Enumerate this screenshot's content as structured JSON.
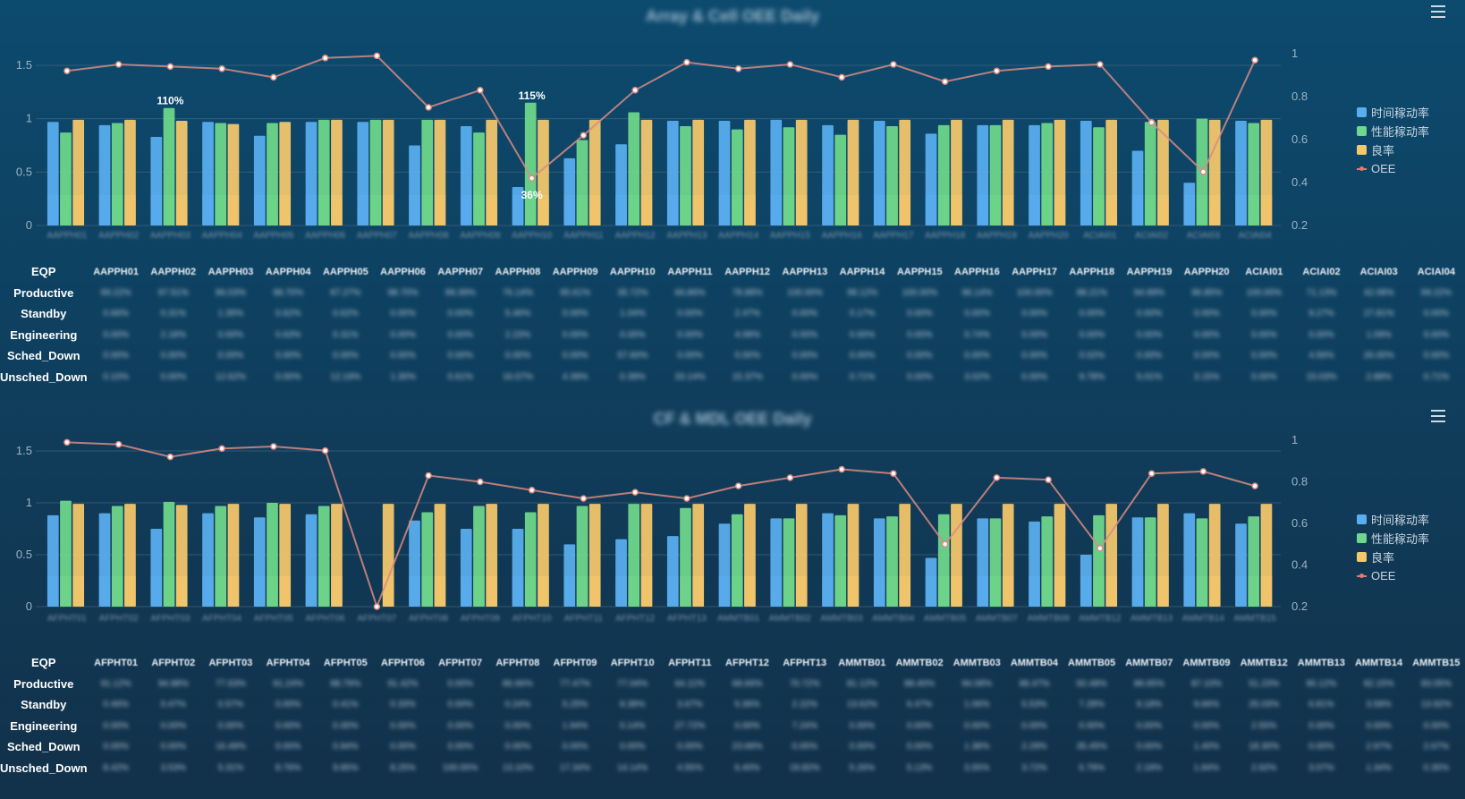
{
  "legend": [
    {
      "label": "时间稼动率",
      "color": "#5aaef0"
    },
    {
      "label": "性能稼动率",
      "color": "#6fd88a"
    },
    {
      "label": "良率",
      "color": "#f6c86c"
    },
    {
      "label": "OEE",
      "color": "#e27b6e"
    }
  ],
  "row_labels": [
    "EQP",
    "Productive",
    "Standby",
    "Engineering",
    "Sched_Down",
    "Unsched_Down"
  ],
  "panels": [
    {
      "title": "Array & Cell OEE Daily",
      "chart_data": {
        "type": "bar",
        "categories": [
          "AAPPH01",
          "AAPPH02",
          "AAPPH03",
          "AAPPH04",
          "AAPPH05",
          "AAPPH06",
          "AAPPH07",
          "AAPPH08",
          "AAPPH09",
          "AAPPH10",
          "AAPPH11",
          "AAPPH12",
          "AAPPH13",
          "AAPPH14",
          "AAPPH15",
          "AAPPH16",
          "AAPPH17",
          "AAPPH18",
          "AAPPH19",
          "AAPPH20",
          "ACIAI01",
          "ACIAI02",
          "ACIAI03",
          "ACIAI04"
        ],
        "ylim_left": [
          0,
          1.5
        ],
        "yticks_left": [
          "0",
          "0.5",
          "1",
          "1.5"
        ],
        "ylim_right": [
          0.2,
          1
        ],
        "yticks_right": [
          "0.2",
          "0.4",
          "0.6",
          "0.8",
          "1"
        ],
        "series": [
          {
            "name": "时间稼动率",
            "values": [
              0.97,
              0.94,
              0.83,
              0.97,
              0.84,
              0.97,
              0.97,
              0.75,
              0.93,
              0.36,
              0.63,
              0.76,
              0.98,
              0.98,
              0.99,
              0.94,
              0.98,
              0.86,
              0.94,
              0.94,
              0.98,
              0.7,
              0.4,
              0.98
            ]
          },
          {
            "name": "性能稼动率",
            "values": [
              0.87,
              0.96,
              1.1,
              0.96,
              0.96,
              0.99,
              0.99,
              0.99,
              0.87,
              1.15,
              0.8,
              1.06,
              0.93,
              0.9,
              0.92,
              0.85,
              0.93,
              0.94,
              0.94,
              0.96,
              0.92,
              0.97,
              1.0,
              0.96
            ]
          },
          {
            "name": "良率",
            "values": [
              0.99,
              0.99,
              0.98,
              0.95,
              0.97,
              0.99,
              0.99,
              0.99,
              0.99,
              0.99,
              0.99,
              0.99,
              0.99,
              0.99,
              0.99,
              0.99,
              0.99,
              0.99,
              0.99,
              0.99,
              0.99,
              0.99,
              0.99,
              0.99
            ]
          },
          {
            "name": "OEE",
            "values": [
              0.92,
              0.95,
              0.94,
              0.93,
              0.89,
              0.98,
              0.99,
              0.75,
              0.83,
              0.42,
              0.62,
              0.83,
              0.96,
              0.93,
              0.95,
              0.89,
              0.95,
              0.87,
              0.92,
              0.94,
              0.95,
              0.68,
              0.45,
              0.97
            ]
          }
        ],
        "data_labels": [
          {
            "index": 2,
            "text": "110%"
          },
          {
            "index": 9,
            "text": "115%"
          },
          {
            "index": 9,
            "text": "36%"
          }
        ]
      },
      "table": {
        "eqp": [
          "AAPPH01",
          "AAPPH02",
          "AAPPH03",
          "AAPPH04",
          "AAPPH05",
          "AAPPH06",
          "AAPPH07",
          "AAPPH08",
          "AAPPH09",
          "AAPPH10",
          "AAPPH11",
          "AAPPH12",
          "AAPPH13",
          "AAPPH14",
          "AAPPH15",
          "AAPPH16",
          "AAPPH17",
          "AAPPH18",
          "AAPPH19",
          "AAPPH20",
          "ACIAI01",
          "ACIAI02",
          "ACIAI03",
          "ACIAI04"
        ],
        "rows": [
          [
            "99.22%",
            "97.51%",
            "86.03%",
            "98.70%",
            "87.27%",
            "98.70%",
            "99.39%",
            "76.14%",
            "95.61%",
            "35.72%",
            "66.86%",
            "78.88%",
            "100.00%",
            "99.12%",
            "100.00%",
            "96.14%",
            "100.00%",
            "88.21%",
            "94.99%",
            "96.85%",
            "100.00%",
            "71.13%",
            "42.08%",
            "99.22%"
          ],
          [
            "0.66%",
            "0.31%",
            "1.35%",
            "0.62%",
            "0.62%",
            "0.00%",
            "0.00%",
            "5.46%",
            "0.00%",
            "1.04%",
            "0.00%",
            "2.47%",
            "0.00%",
            "0.17%",
            "0.00%",
            "0.00%",
            "0.00%",
            "0.00%",
            "0.00%",
            "0.00%",
            "0.00%",
            "9.27%",
            "27.81%",
            "0.00%"
          ],
          [
            "0.00%",
            "2.18%",
            "0.00%",
            "0.63%",
            "0.31%",
            "0.00%",
            "0.00%",
            "2.23%",
            "0.00%",
            "0.00%",
            "0.00%",
            "4.08%",
            "0.00%",
            "0.00%",
            "0.00%",
            "0.74%",
            "0.00%",
            "0.00%",
            "0.00%",
            "0.00%",
            "0.00%",
            "0.00%",
            "1.09%",
            "0.00%"
          ],
          [
            "0.00%",
            "0.00%",
            "0.00%",
            "0.00%",
            "0.00%",
            "0.00%",
            "0.00%",
            "0.00%",
            "0.00%",
            "57.60%",
            "0.00%",
            "0.00%",
            "0.00%",
            "0.00%",
            "0.00%",
            "0.00%",
            "0.00%",
            "0.02%",
            "0.00%",
            "0.00%",
            "0.00%",
            "4.56%",
            "26.00%",
            "0.00%"
          ],
          [
            "0.10%",
            "0.00%",
            "12.62%",
            "0.00%",
            "12.19%",
            "1.30%",
            "0.61%",
            "16.07%",
            "4.39%",
            "0.39%",
            "33.14%",
            "15.37%",
            "0.00%",
            "0.71%",
            "0.00%",
            "3.02%",
            "0.00%",
            "9.78%",
            "5.01%",
            "3.15%",
            "0.00%",
            "15.03%",
            "2.88%",
            "0.71%"
          ]
        ]
      }
    },
    {
      "title": "CF & MDL OEE Daily",
      "chart_data": {
        "type": "bar",
        "categories": [
          "AFPHT01",
          "AFPHT02",
          "AFPHT03",
          "AFPHT04",
          "AFPHT05",
          "AFPHT06",
          "AFPHT07",
          "AFPHT08",
          "AFPHT09",
          "AFPHT10",
          "AFPHT11",
          "AFPHT12",
          "AFPHT13",
          "AMMTB01",
          "AMMTB02",
          "AMMTB03",
          "AMMTB04",
          "AMMTB05",
          "AMMTB07",
          "AMMTB09",
          "AMMTB12",
          "AMMTB13",
          "AMMTB14",
          "AMMTB15"
        ],
        "ylim_left": [
          0,
          1.5
        ],
        "yticks_left": [
          "0",
          "0.5",
          "1",
          "1.5"
        ],
        "ylim_right": [
          0.2,
          1
        ],
        "yticks_right": [
          "0.2",
          "0.4",
          "0.6",
          "0.8",
          "1"
        ],
        "series": [
          {
            "name": "时间稼动率",
            "values": [
              0.88,
              0.9,
              0.75,
              0.9,
              0.86,
              0.89,
              0.0,
              0.83,
              0.75,
              0.75,
              0.6,
              0.65,
              0.68,
              0.8,
              0.85,
              0.9,
              0.85,
              0.47,
              0.85,
              0.82,
              0.5,
              0.86,
              0.9,
              0.8
            ]
          },
          {
            "name": "性能稼动率",
            "values": [
              1.02,
              0.97,
              1.01,
              0.97,
              1.0,
              0.97,
              0.0,
              0.91,
              0.97,
              0.91,
              0.97,
              0.99,
              0.95,
              0.89,
              0.85,
              0.88,
              0.87,
              0.89,
              0.85,
              0.87,
              0.88,
              0.86,
              0.85,
              0.87
            ]
          },
          {
            "name": "良率",
            "values": [
              0.99,
              0.99,
              0.98,
              0.99,
              0.99,
              0.99,
              0.99,
              0.99,
              0.99,
              0.99,
              0.99,
              0.99,
              0.99,
              0.99,
              0.99,
              0.99,
              0.99,
              0.99,
              0.99,
              0.99,
              0.99,
              0.99,
              0.99,
              0.99
            ]
          },
          {
            "name": "OEE",
            "values": [
              0.99,
              0.98,
              0.92,
              0.96,
              0.97,
              0.95,
              0.2,
              0.83,
              0.8,
              0.76,
              0.72,
              0.75,
              0.72,
              0.78,
              0.82,
              0.86,
              0.84,
              0.5,
              0.82,
              0.81,
              0.48,
              0.84,
              0.85,
              0.78
            ]
          }
        ]
      },
      "table": {
        "eqp": [
          "AFPHT01",
          "AFPHT02",
          "AFPHT03",
          "AFPHT04",
          "AFPHT05",
          "AFPHT06",
          "AFPHT07",
          "AFPHT08",
          "AFPHT09",
          "AFPHT10",
          "AFPHT11",
          "AFPHT12",
          "AFPHT13",
          "AMMTB01",
          "AMMTB02",
          "AMMTB03",
          "AMMTB04",
          "AMMTB05",
          "AMMTB07",
          "AMMTB09",
          "AMMTB12",
          "AMMTB13",
          "AMMTB14",
          "AMMTB15"
        ],
        "rows": [
          [
            "91.12%",
            "94.88%",
            "77.63%",
            "91.24%",
            "88.79%",
            "91.42%",
            "0.00%",
            "86.66%",
            "77.47%",
            "77.04%",
            "64.11%",
            "68.66%",
            "70.72%",
            "81.12%",
            "88.40%",
            "94.08%",
            "88.47%",
            "50.48%",
            "88.65%",
            "87.10%",
            "51.23%",
            "90.12%",
            "92.15%",
            "83.05%"
          ],
          [
            "0.46%",
            "0.47%",
            "0.57%",
            "0.00%",
            "0.41%",
            "0.33%",
            "0.00%",
            "0.24%",
            "5.25%",
            "8.38%",
            "3.67%",
            "5.36%",
            "2.22%",
            "13.62%",
            "6.47%",
            "1.06%",
            "5.53%",
            "7.28%",
            "9.18%",
            "9.66%",
            "25.03%",
            "6.81%",
            "3.58%",
            "13.92%"
          ],
          [
            "0.00%",
            "0.00%",
            "0.00%",
            "0.00%",
            "0.00%",
            "0.00%",
            "0.00%",
            "0.00%",
            "1.94%",
            "0.14%",
            "27.72%",
            "0.00%",
            "7.24%",
            "0.00%",
            "0.00%",
            "0.00%",
            "0.00%",
            "0.00%",
            "0.00%",
            "0.00%",
            "2.55%",
            "0.00%",
            "0.00%",
            "0.00%"
          ],
          [
            "0.00%",
            "0.00%",
            "16.49%",
            "0.00%",
            "0.94%",
            "0.00%",
            "0.00%",
            "0.00%",
            "0.00%",
            "0.00%",
            "0.00%",
            "23.68%",
            "0.00%",
            "0.00%",
            "0.00%",
            "1.38%",
            "2.29%",
            "35.45%",
            "0.00%",
            "1.40%",
            "18.30%",
            "0.00%",
            "2.97%",
            "2.67%"
          ],
          [
            "8.42%",
            "3.53%",
            "5.31%",
            "8.76%",
            "9.85%",
            "8.25%",
            "100.00%",
            "13.10%",
            "17.34%",
            "14.14%",
            "4.55%",
            "6.40%",
            "19.82%",
            "5.26%",
            "5.13%",
            "3.55%",
            "3.72%",
            "6.79%",
            "2.18%",
            "1.84%",
            "2.92%",
            "3.07%",
            "1.34%",
            "0.35%"
          ]
        ]
      }
    }
  ]
}
